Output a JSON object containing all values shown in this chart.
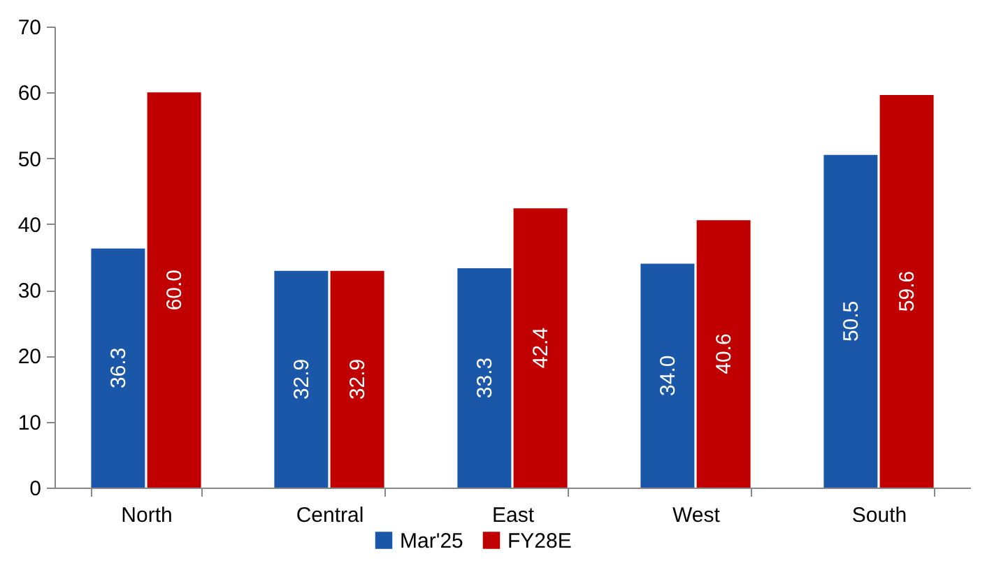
{
  "chart_data": {
    "type": "bar",
    "categories": [
      "North",
      "Central",
      "East",
      "West",
      "South"
    ],
    "series": [
      {
        "name": "Mar'25",
        "color": "#1a57a8",
        "values": [
          36.3,
          32.9,
          33.3,
          34.0,
          50.5
        ],
        "value_labels": [
          "36.3",
          "32.9",
          "33.3",
          "34.0",
          "50.5"
        ]
      },
      {
        "name": "FY28E",
        "color": "#c00000",
        "values": [
          60.0,
          32.9,
          42.4,
          40.6,
          59.6
        ],
        "value_labels": [
          "60.0",
          "32.9",
          "42.4",
          "40.6",
          "59.6"
        ]
      }
    ],
    "ylim": [
      0,
      70
    ],
    "yticks": [
      0,
      10,
      20,
      30,
      40,
      50,
      60,
      70
    ],
    "grid": false,
    "legend": "bottom"
  }
}
